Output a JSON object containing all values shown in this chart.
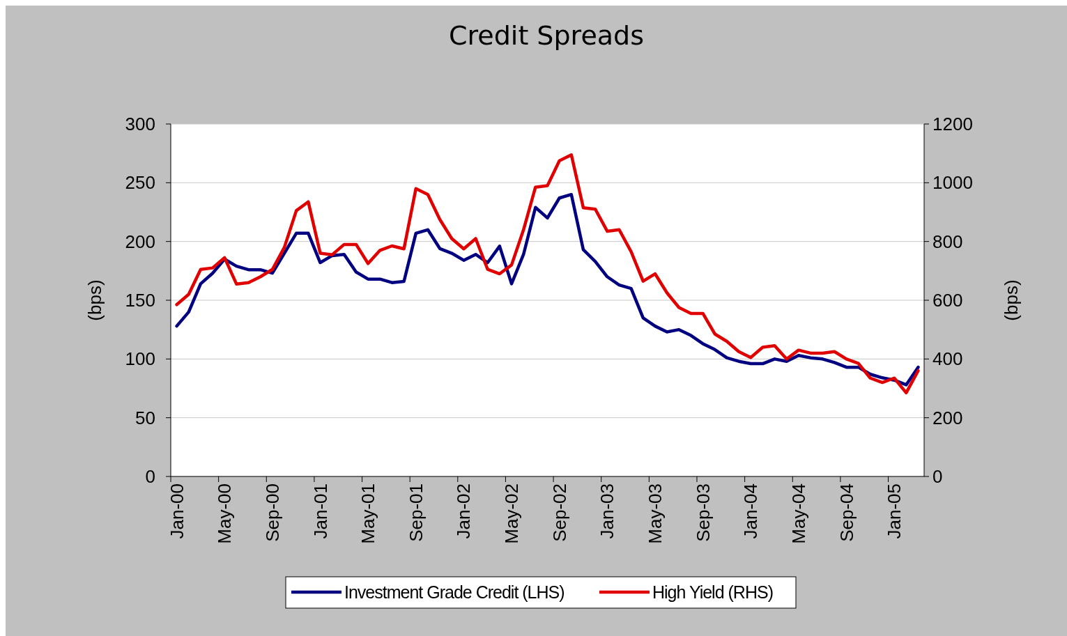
{
  "chart_data": {
    "type": "line",
    "title": "Credit Spreads",
    "ylabel": "(bps)",
    "y2label": "(bps)",
    "categories": [
      "Jan-00",
      null,
      null,
      null,
      "May-00",
      null,
      null,
      null,
      "Sep-00",
      null,
      null,
      null,
      "Jan-01",
      null,
      null,
      null,
      "May-01",
      null,
      null,
      null,
      "Sep-01",
      null,
      null,
      null,
      "Jan-02",
      null,
      null,
      null,
      "May-02",
      null,
      null,
      null,
      "Sep-02",
      null,
      null,
      null,
      "Jan-03",
      null,
      null,
      null,
      "May-03",
      null,
      null,
      null,
      "Sep-03",
      null,
      null,
      null,
      "Jan-04",
      null,
      null,
      null,
      "May-04",
      null,
      null,
      null,
      "Sep-04",
      null,
      null,
      null,
      "Jan-05",
      null,
      null
    ],
    "series": [
      {
        "name": "Investment Grade Credit (LHS)",
        "color": "#000080",
        "values": [
          128,
          140,
          164,
          173,
          185,
          179,
          176,
          176,
          173,
          190,
          207,
          207,
          182,
          188,
          189,
          174,
          168,
          168,
          165,
          166,
          207,
          210,
          194,
          190,
          184,
          189,
          182,
          196,
          164,
          189,
          229,
          220,
          237,
          240,
          193,
          183,
          170,
          163,
          160,
          135,
          128,
          123,
          125,
          120,
          113,
          108,
          101,
          98,
          96,
          96,
          100,
          98,
          103,
          101,
          100,
          97,
          93,
          93,
          87,
          84,
          82,
          78,
          93
        ]
      },
      {
        "name": "High Yield (RHS)",
        "color": "#e00000",
        "axis": "y2",
        "values": [
          585,
          620,
          705,
          710,
          745,
          655,
          660,
          680,
          705,
          780,
          905,
          935,
          760,
          755,
          790,
          790,
          725,
          770,
          785,
          775,
          980,
          960,
          875,
          810,
          775,
          810,
          705,
          690,
          720,
          840,
          985,
          990,
          1075,
          1095,
          915,
          910,
          835,
          840,
          765,
          665,
          690,
          625,
          575,
          555,
          555,
          485,
          460,
          425,
          405,
          440,
          445,
          400,
          430,
          420,
          420,
          425,
          400,
          385,
          335,
          320,
          335,
          285,
          360
        ]
      }
    ],
    "ylim": [
      0,
      300
    ],
    "yticks": [
      0,
      50,
      100,
      150,
      200,
      250,
      300
    ],
    "y2lim": [
      0,
      1200
    ],
    "y2ticks": [
      0,
      200,
      400,
      600,
      800,
      1000,
      1200
    ],
    "grid": "y",
    "legend": "bottom",
    "marker": "none",
    "line_style": "solid"
  }
}
